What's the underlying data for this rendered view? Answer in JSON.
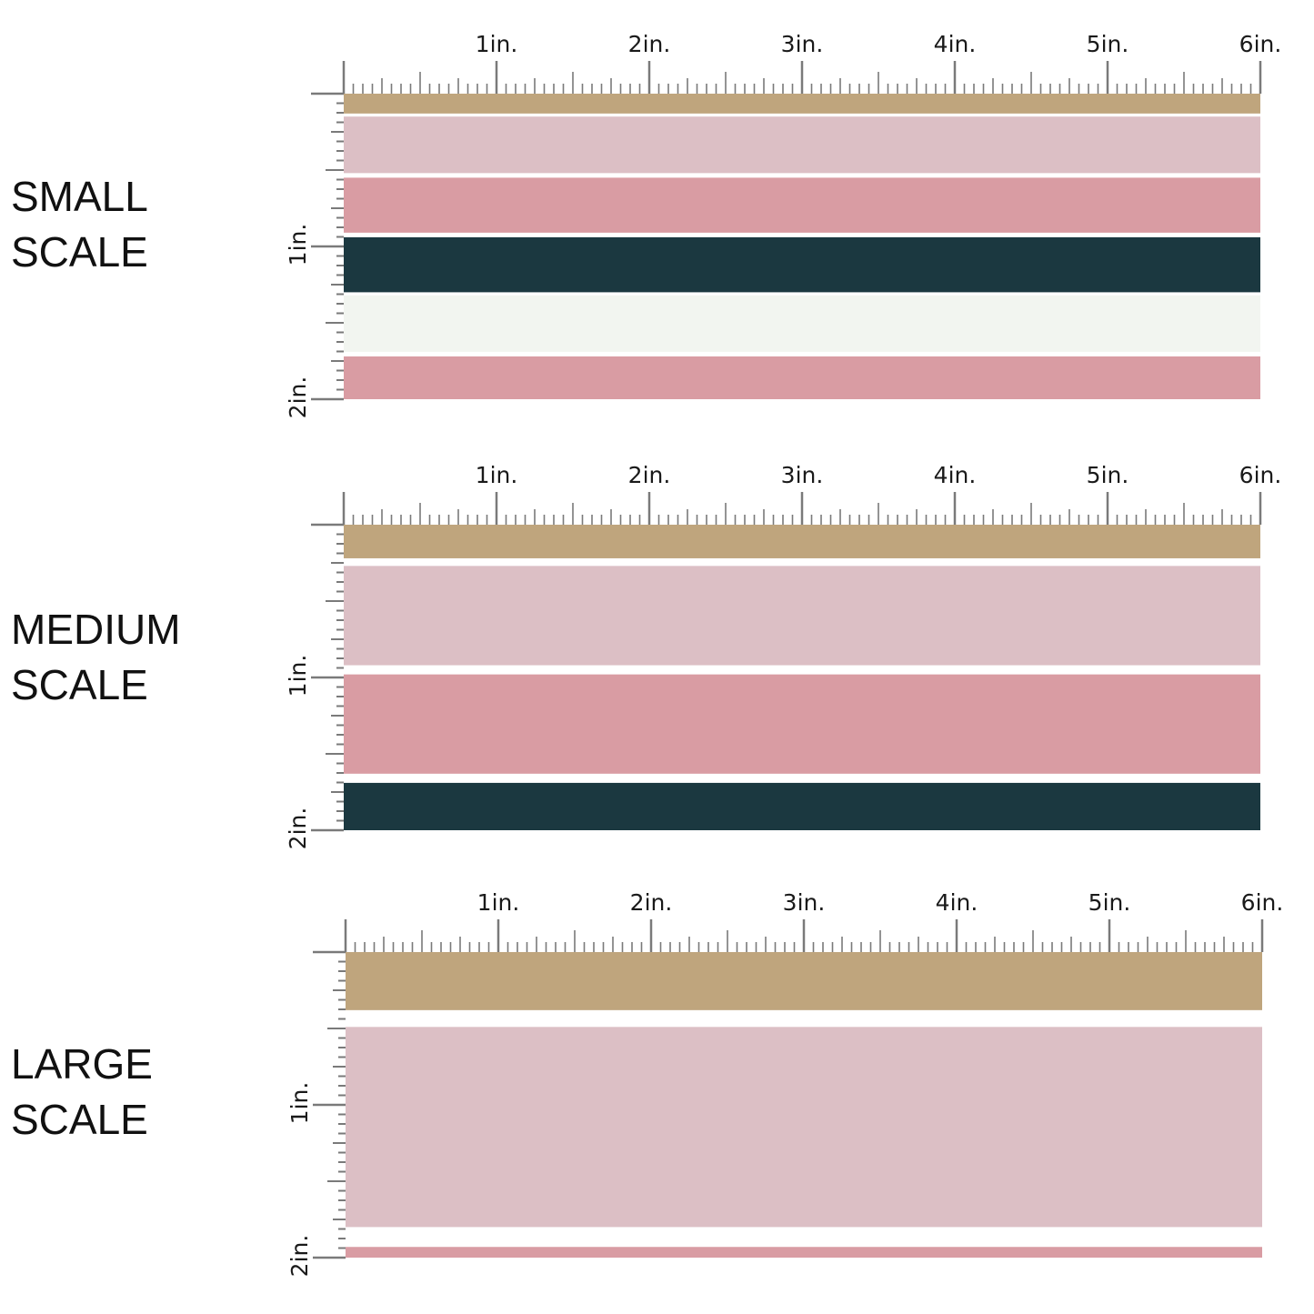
{
  "ruler": {
    "x_labels": [
      "1in.",
      "2in.",
      "3in.",
      "4in.",
      "5in.",
      "6in."
    ],
    "y_labels": [
      "1in.",
      "2in."
    ]
  },
  "palette": {
    "tan": "#bfa57d",
    "blush": "#dcbfc5",
    "rose": "#d99ca3",
    "teal": "#1b3840",
    "cream": "#f2f5f0",
    "tick": "#7a7a7a"
  },
  "panels": [
    {
      "id": "small",
      "label_line1": "SMALL",
      "label_line2": "SCALE",
      "stripes": [
        {
          "color": "tan",
          "span_in": [
            0,
            0.13
          ]
        },
        {
          "color": "blush",
          "span_in": [
            0.15,
            0.52
          ]
        },
        {
          "color": "rose",
          "span_in": [
            0.55,
            0.91
          ]
        },
        {
          "color": "teal",
          "span_in": [
            0.94,
            1.3
          ]
        },
        {
          "color": "cream",
          "span_in": [
            1.32,
            1.69
          ]
        },
        {
          "color": "rose",
          "span_in": [
            1.72,
            2.0
          ]
        }
      ]
    },
    {
      "id": "medium",
      "label_line1": "MEDIUM",
      "label_line2": "SCALE",
      "stripes": [
        {
          "color": "tan",
          "span_in": [
            0,
            0.22
          ]
        },
        {
          "color": "blush",
          "span_in": [
            0.27,
            0.92
          ]
        },
        {
          "color": "rose",
          "span_in": [
            0.98,
            1.63
          ]
        },
        {
          "color": "teal",
          "span_in": [
            1.69,
            2.0
          ]
        }
      ]
    },
    {
      "id": "large",
      "label_line1": "LARGE",
      "label_line2": "SCALE",
      "stripes": [
        {
          "color": "tan",
          "span_in": [
            0,
            0.38
          ]
        },
        {
          "color": "blush",
          "span_in": [
            0.49,
            1.8
          ]
        },
        {
          "color": "rose",
          "span_in": [
            1.93,
            2.0
          ]
        }
      ]
    }
  ]
}
